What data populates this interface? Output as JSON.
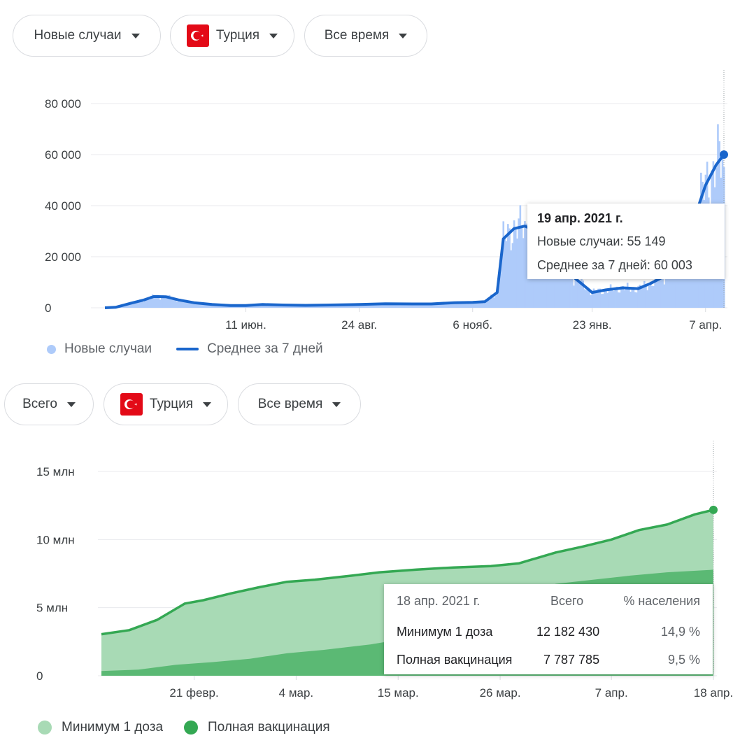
{
  "top_filters": {
    "metric": "Новые случаи",
    "country": "Турция",
    "period": "Все время"
  },
  "bottom_filters": {
    "metric": "Всего",
    "country": "Турция",
    "period": "Все время"
  },
  "colors": {
    "cases_fill": "#aecbfa",
    "avg_line": "#1a66cc",
    "vax_light": "#a8dab5",
    "vax_dark": "#5bb974",
    "vax_line": "#34a853",
    "flag": "#e30a17"
  },
  "tooltip_cases": {
    "date": "19 апр. 2021 г.",
    "new_cases": "Новые случаи: 55 149",
    "avg": "Среднее за 7 дней: 60 003"
  },
  "tooltip_vax": {
    "date": "18 апр. 2021 г.",
    "col_total": "Всего",
    "col_pct": "% населения",
    "rows": [
      {
        "label": "Минимум 1 доза",
        "total": "12 182 430",
        "pct": "14,9 %"
      },
      {
        "label": "Полная вакцинация",
        "total": "7 787 785",
        "pct": "9,5 %"
      }
    ]
  },
  "legend_cases": {
    "bars": "Новые случаи",
    "line": "Среднее за 7 дней"
  },
  "legend_vax": {
    "one_dose": "Минимум 1 доза",
    "full": "Полная вакцинация"
  },
  "chart_data": [
    {
      "type": "area",
      "ylim": [
        0,
        80000
      ],
      "yticks": [
        0,
        20000,
        40000,
        60000,
        80000
      ],
      "ytick_labels": [
        "0",
        "20 000",
        "40 000",
        "60 000",
        "80 000"
      ],
      "xtick_labels": [
        "11 июн.",
        "24 авг.",
        "6 нояб.",
        "23 янв.",
        "7 апр."
      ],
      "xtick_dates": [
        "2020-06-11",
        "2020-08-24",
        "2020-11-06",
        "2021-01-23",
        "2021-04-07"
      ],
      "x_range": [
        "2020-03-11",
        "2021-04-19"
      ],
      "series": [
        {
          "name": "Среднее за 7 дней",
          "points": [
            [
              "2020-03-11",
              0
            ],
            [
              "2020-03-18",
              200
            ],
            [
              "2020-03-28",
              1800
            ],
            [
              "2020-04-05",
              3000
            ],
            [
              "2020-04-12",
              4400
            ],
            [
              "2020-04-20",
              4300
            ],
            [
              "2020-04-28",
              3100
            ],
            [
              "2020-05-08",
              2000
            ],
            [
              "2020-05-20",
              1300
            ],
            [
              "2020-06-01",
              900
            ],
            [
              "2020-06-11",
              900
            ],
            [
              "2020-06-22",
              1300
            ],
            [
              "2020-07-05",
              1100
            ],
            [
              "2020-07-20",
              950
            ],
            [
              "2020-08-05",
              1100
            ],
            [
              "2020-08-24",
              1300
            ],
            [
              "2020-09-10",
              1600
            ],
            [
              "2020-09-28",
              1500
            ],
            [
              "2020-10-10",
              1500
            ],
            [
              "2020-10-25",
              2000
            ],
            [
              "2020-11-06",
              2100
            ],
            [
              "2020-11-14",
              2400
            ],
            [
              "2020-11-22",
              6000
            ],
            [
              "2020-11-26",
              27000
            ],
            [
              "2020-12-03",
              31000
            ],
            [
              "2020-12-10",
              32000
            ],
            [
              "2020-12-20",
              29500
            ],
            [
              "2020-12-30",
              22500
            ],
            [
              "2021-01-10",
              12500
            ],
            [
              "2021-01-23",
              6000
            ],
            [
              "2021-02-01",
              7000
            ],
            [
              "2021-02-12",
              7800
            ],
            [
              "2021-02-22",
              7500
            ],
            [
              "2021-03-02",
              9500
            ],
            [
              "2021-03-10",
              12000
            ],
            [
              "2021-03-20",
              18000
            ],
            [
              "2021-03-29",
              32000
            ],
            [
              "2021-04-07",
              48000
            ],
            [
              "2021-04-14",
              56000
            ],
            [
              "2021-04-19",
              60003
            ]
          ]
        },
        {
          "name": "Новые случаи",
          "last_value": 55149
        }
      ]
    },
    {
      "type": "area",
      "ylim": [
        0,
        15000000
      ],
      "yticks": [
        0,
        5000000,
        10000000,
        15000000
      ],
      "ytick_labels": [
        "0",
        "5 млн",
        "10 млн",
        "15 млн"
      ],
      "xtick_labels": [
        "21 февр.",
        "4 мар.",
        "15 мар.",
        "26 мар.",
        "7 апр.",
        "18 апр."
      ],
      "xtick_dates": [
        "2021-02-21",
        "2021-03-04",
        "2021-03-15",
        "2021-03-26",
        "2021-04-07",
        "2021-04-18"
      ],
      "x_range": [
        "2021-02-11",
        "2021-04-18"
      ],
      "series": [
        {
          "name": "Минимум 1 доза",
          "points": [
            [
              "2021-02-11",
              3050000
            ],
            [
              "2021-02-14",
              3350000
            ],
            [
              "2021-02-17",
              4100000
            ],
            [
              "2021-02-20",
              5300000
            ],
            [
              "2021-02-22",
              5550000
            ],
            [
              "2021-02-25",
              6050000
            ],
            [
              "2021-02-28",
              6500000
            ],
            [
              "2021-03-03",
              6900000
            ],
            [
              "2021-03-06",
              7050000
            ],
            [
              "2021-03-10",
              7350000
            ],
            [
              "2021-03-13",
              7600000
            ],
            [
              "2021-03-17",
              7800000
            ],
            [
              "2021-03-21",
              7950000
            ],
            [
              "2021-03-25",
              8050000
            ],
            [
              "2021-03-28",
              8250000
            ],
            [
              "2021-04-01",
              9050000
            ],
            [
              "2021-04-04",
              9500000
            ],
            [
              "2021-04-07",
              10000000
            ],
            [
              "2021-04-10",
              10700000
            ],
            [
              "2021-04-13",
              11100000
            ],
            [
              "2021-04-16",
              11850000
            ],
            [
              "2021-04-18",
              12182430
            ]
          ]
        },
        {
          "name": "Полная вакцинация",
          "points": [
            [
              "2021-02-11",
              350000
            ],
            [
              "2021-02-15",
              450000
            ],
            [
              "2021-02-19",
              800000
            ],
            [
              "2021-02-23",
              1000000
            ],
            [
              "2021-02-27",
              1250000
            ],
            [
              "2021-03-03",
              1650000
            ],
            [
              "2021-03-07",
              1900000
            ],
            [
              "2021-03-12",
              2300000
            ],
            [
              "2021-03-16",
              2750000
            ],
            [
              "2021-03-20",
              3350000
            ],
            [
              "2021-03-24",
              4300000
            ],
            [
              "2021-03-28",
              5900000
            ],
            [
              "2021-04-01",
              6750000
            ],
            [
              "2021-04-05",
              7050000
            ],
            [
              "2021-04-09",
              7350000
            ],
            [
              "2021-04-13",
              7600000
            ],
            [
              "2021-04-18",
              7787785
            ]
          ]
        }
      ]
    }
  ]
}
